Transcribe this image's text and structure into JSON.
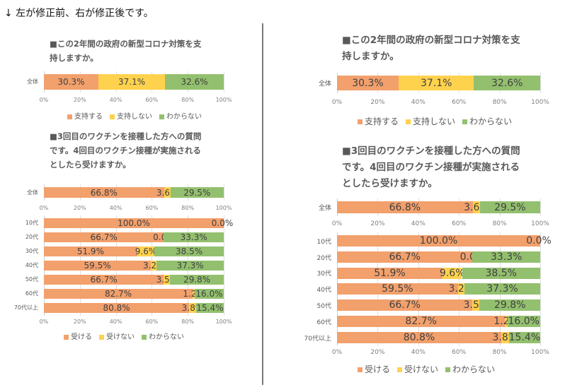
{
  "header": {
    "text": "↓ 左が修正前、右が修正後です。"
  },
  "colors": {
    "orange": "#F2A06C",
    "yellow": "#FFD24D",
    "green": "#93C06E"
  },
  "panels": [
    {
      "id": "before",
      "label": "修正前"
    },
    {
      "id": "after",
      "label": "修正後"
    }
  ],
  "chart_data": [
    {
      "type": "bar",
      "stacked": true,
      "orientation": "horizontal",
      "panel": "before",
      "title_lines": [
        "■この2年間の政府の新型コロナ対策を支",
        "持しますか。"
      ],
      "categories": [
        "全体"
      ],
      "series": [
        {
          "name": "支持する",
          "color": "#F2A06C",
          "values": [
            30.3
          ]
        },
        {
          "name": "支持しない",
          "color": "#FFD24D",
          "values": [
            37.1
          ]
        },
        {
          "name": "わからない",
          "color": "#93C06E",
          "values": [
            32.6
          ]
        }
      ],
      "data_labels": [
        [
          "30.3%",
          "37.1%",
          "32.6%"
        ]
      ],
      "xticks": [
        "0%",
        "20%",
        "40%",
        "60%",
        "80%",
        "100%"
      ],
      "xlim": [
        0,
        100
      ],
      "legend": "bottom"
    },
    {
      "type": "bar",
      "stacked": true,
      "orientation": "horizontal",
      "panel": "before",
      "title_lines": [
        "■3回目のワクチンを接種した方への質問",
        "です。4回目のワクチン接種が実施される",
        "としたら受けますか。"
      ],
      "overall": {
        "categories": [
          "全体"
        ],
        "values": [
          [
            66.8,
            3.6,
            29.5
          ]
        ],
        "labels": [
          [
            "66.8%",
            "3.6%",
            "29.5%"
          ]
        ]
      },
      "categories": [
        "10代",
        "20代",
        "30代",
        "40代",
        "50代",
        "60代",
        "70代以上"
      ],
      "series": [
        {
          "name": "受ける",
          "color": "#F2A06C",
          "values": [
            100.0,
            66.7,
            51.9,
            59.5,
            66.7,
            82.7,
            80.8
          ]
        },
        {
          "name": "受けない",
          "color": "#FFD24D",
          "values": [
            0.0,
            0.0,
            9.6,
            3.2,
            3.5,
            1.2,
            3.8
          ]
        },
        {
          "name": "わからない",
          "color": "#93C06E",
          "values": [
            0.0,
            33.3,
            38.5,
            37.3,
            29.8,
            16.0,
            15.4
          ]
        }
      ],
      "data_labels": [
        [
          "100.0%",
          "0.0%",
          ""
        ],
        [
          "66.7%",
          "0.0%",
          "33.3%"
        ],
        [
          "51.9%",
          "9.6%",
          "38.5%"
        ],
        [
          "59.5%",
          "3.2%",
          "37.3%"
        ],
        [
          "66.7%",
          "3.5%",
          "29.8%"
        ],
        [
          "82.7%",
          "1.2%",
          "16.0%"
        ],
        [
          "80.8%",
          "3.8%",
          "15.4%"
        ]
      ],
      "xticks": [
        "0%",
        "20%",
        "40%",
        "60%",
        "80%",
        "100%"
      ],
      "xlim": [
        0,
        100
      ],
      "legend": "bottom"
    },
    {
      "type": "bar",
      "stacked": true,
      "orientation": "horizontal",
      "panel": "after",
      "title_lines": [
        "■この2年間の政府の新型コロナ対策を支",
        "持しますか。"
      ],
      "categories": [
        "全体"
      ],
      "series": [
        {
          "name": "支持する",
          "color": "#F2A06C",
          "values": [
            30.3
          ]
        },
        {
          "name": "支持しない",
          "color": "#FFD24D",
          "values": [
            37.1
          ]
        },
        {
          "name": "わからない",
          "color": "#93C06E",
          "values": [
            32.6
          ]
        }
      ],
      "data_labels": [
        [
          "30.3%",
          "37.1%",
          "32.6%"
        ]
      ],
      "xticks": [
        "0%",
        "20%",
        "40%",
        "60%",
        "80%",
        "100%"
      ],
      "xlim": [
        0,
        100
      ],
      "legend": "bottom"
    },
    {
      "type": "bar",
      "stacked": true,
      "orientation": "horizontal",
      "panel": "after",
      "title_lines": [
        "■3回目のワクチンを接種した方への質問",
        "です。4回目のワクチン接種が実施される",
        "としたら受けますか。"
      ],
      "overall": {
        "categories": [
          "全体"
        ],
        "values": [
          [
            66.8,
            3.6,
            29.5
          ]
        ],
        "labels": [
          [
            "66.8%",
            "3.6%",
            "29.5%"
          ]
        ]
      },
      "categories": [
        "10代",
        "20代",
        "30代",
        "40代",
        "50代",
        "60代",
        "70代以上"
      ],
      "series": [
        {
          "name": "受ける",
          "color": "#F2A06C",
          "values": [
            100.0,
            66.7,
            51.9,
            59.5,
            66.7,
            82.7,
            80.8
          ]
        },
        {
          "name": "受けない",
          "color": "#FFD24D",
          "values": [
            0.0,
            0.0,
            9.6,
            3.2,
            3.5,
            1.2,
            3.8
          ]
        },
        {
          "name": "わからない",
          "color": "#93C06E",
          "values": [
            0.0,
            33.3,
            38.5,
            37.3,
            29.8,
            16.0,
            15.4
          ]
        }
      ],
      "data_labels": [
        [
          "100.0%",
          "0.0%",
          ""
        ],
        [
          "66.7%",
          "0.0%",
          "33.3%"
        ],
        [
          "51.9%",
          "9.6%",
          "38.5%"
        ],
        [
          "59.5%",
          "3.2%",
          "37.3%"
        ],
        [
          "66.7%",
          "3.5%",
          "29.8%"
        ],
        [
          "82.7%",
          "1.2%",
          "16.0%"
        ],
        [
          "80.8%",
          "3.8%",
          "15.4%"
        ]
      ],
      "xticks": [
        "0%",
        "20%",
        "40%",
        "60%",
        "80%",
        "100%"
      ],
      "xlim": [
        0,
        100
      ],
      "legend": "bottom"
    }
  ]
}
